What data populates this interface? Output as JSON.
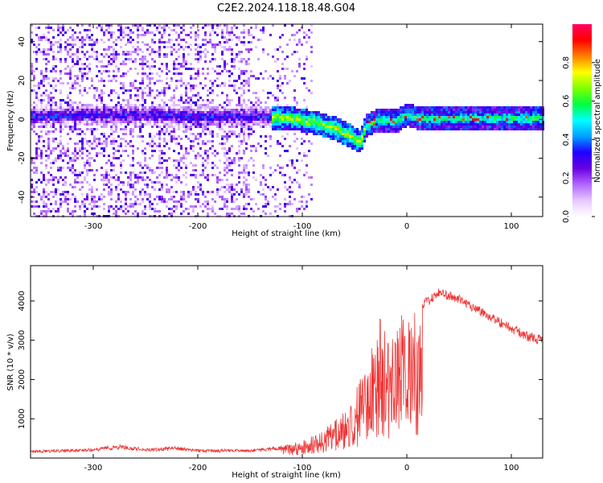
{
  "title": "C2E2.2024.118.18.48.G04",
  "chart_data": [
    {
      "type": "heatmap",
      "xlabel": "Height of straight line (km)",
      "ylabel": "Frequency (Hz)",
      "xlim": [
        -360,
        130
      ],
      "ylim": [
        -50,
        49
      ],
      "xticks": [
        -300,
        -200,
        -100,
        0,
        100
      ],
      "yticks": [
        -40,
        -20,
        0,
        20,
        40
      ],
      "colorbar": {
        "label": "Normalized spectral amplitude",
        "range": [
          0,
          1
        ],
        "ticks": [
          0.0,
          0.2,
          0.4,
          0.6,
          0.8
        ],
        "colormap": [
          "#ffffff",
          "#e6c8ff",
          "#b266ff",
          "#6a00e0",
          "#1f00ff",
          "#00a0ff",
          "#00ffff",
          "#00ff40",
          "#80ff00",
          "#ffff00",
          "#ff8000",
          "#ff0000",
          "#ff0060"
        ]
      },
      "ridge": {
        "description_points": [
          [
            -360,
            2
          ],
          [
            -300,
            3
          ],
          [
            -250,
            3
          ],
          [
            -200,
            2
          ],
          [
            -150,
            2
          ],
          [
            -110,
            1
          ],
          [
            -90,
            -1
          ],
          [
            -70,
            -4
          ],
          [
            -55,
            -8
          ],
          [
            -45,
            -11
          ],
          [
            -40,
            -3
          ],
          [
            -30,
            0
          ],
          [
            -10,
            0
          ],
          [
            0,
            3
          ],
          [
            10,
            1
          ],
          [
            50,
            1
          ],
          [
            100,
            1
          ],
          [
            130,
            1
          ]
        ],
        "noise_region": [
          -360,
          -90
        ]
      },
      "grid": false
    },
    {
      "type": "line",
      "xlabel": "Height of straight line (km)",
      "ylabel": "SNR (10 * v/v)",
      "xlim": [
        -360,
        130
      ],
      "ylim": [
        0,
        4900
      ],
      "xticks": [
        -300,
        -200,
        -100,
        0,
        100
      ],
      "yticks": [
        1000,
        2000,
        3000,
        4000
      ],
      "series": [
        {
          "color": "#ee3333",
          "envelope": [
            [
              -360,
              200
            ],
            [
              -300,
              250
            ],
            [
              -275,
              350
            ],
            [
              -250,
              250
            ],
            [
              -220,
              300
            ],
            [
              -200,
              220
            ],
            [
              -150,
              230
            ],
            [
              -120,
              300
            ],
            [
              -100,
              450
            ],
            [
              -80,
              700
            ],
            [
              -60,
              1200
            ],
            [
              -45,
              2000
            ],
            [
              -35,
              2700
            ],
            [
              -30,
              3200
            ],
            [
              -25,
              3700
            ],
            [
              -20,
              3200
            ],
            [
              -15,
              3000
            ],
            [
              -10,
              3200
            ],
            [
              -5,
              3800
            ],
            [
              0,
              3400
            ],
            [
              10,
              3800
            ],
            [
              20,
              4000
            ],
            [
              30,
              4200
            ],
            [
              40,
              4150
            ],
            [
              60,
              3900
            ],
            [
              80,
              3600
            ],
            [
              100,
              3300
            ],
            [
              115,
              3100
            ],
            [
              130,
              3000
            ]
          ]
        }
      ],
      "grid": false
    }
  ]
}
